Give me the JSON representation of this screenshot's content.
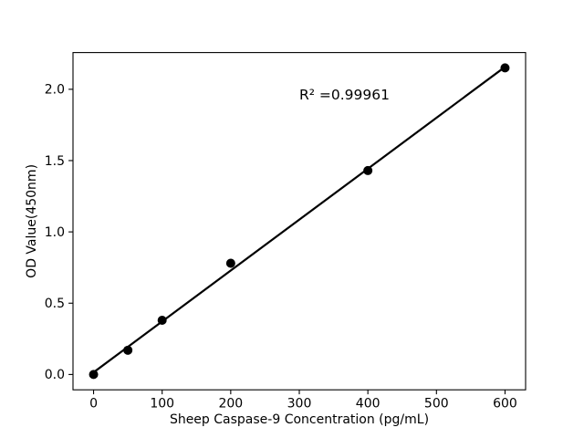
{
  "figure": {
    "background": "#ffffff"
  },
  "chart_data": {
    "type": "scatter",
    "title": "",
    "xlabel": "Sheep Caspase-9 Concentration (pg/mL)",
    "ylabel": "OD Value(450nm)",
    "x": [
      0,
      50,
      100,
      200,
      400,
      600
    ],
    "y": [
      0.0,
      0.17,
      0.38,
      0.78,
      1.43,
      2.15
    ],
    "fit_line": {
      "x": [
        0,
        600
      ],
      "y": [
        0.015,
        2.157
      ]
    },
    "annotation": {
      "text": "R² =0.99961",
      "x": 300,
      "y": 1.93
    },
    "xticks": {
      "values": [
        0,
        100,
        200,
        300,
        400,
        500,
        600
      ],
      "labels": [
        "0",
        "100",
        "200",
        "300",
        "400",
        "500",
        "600"
      ]
    },
    "yticks": {
      "values": [
        0,
        0.5,
        1.0,
        1.5,
        2.0
      ],
      "labels": [
        "0.0",
        "0.5",
        "1.0",
        "1.5",
        "2.0"
      ]
    },
    "xlim": [
      -30,
      630
    ],
    "ylim": [
      -0.1075,
      2.2575
    ],
    "grid": false,
    "legend": null,
    "marker_color": "#000000",
    "line_color": "#000000",
    "axis_color": "#000000",
    "background_color": "#ffffff"
  }
}
